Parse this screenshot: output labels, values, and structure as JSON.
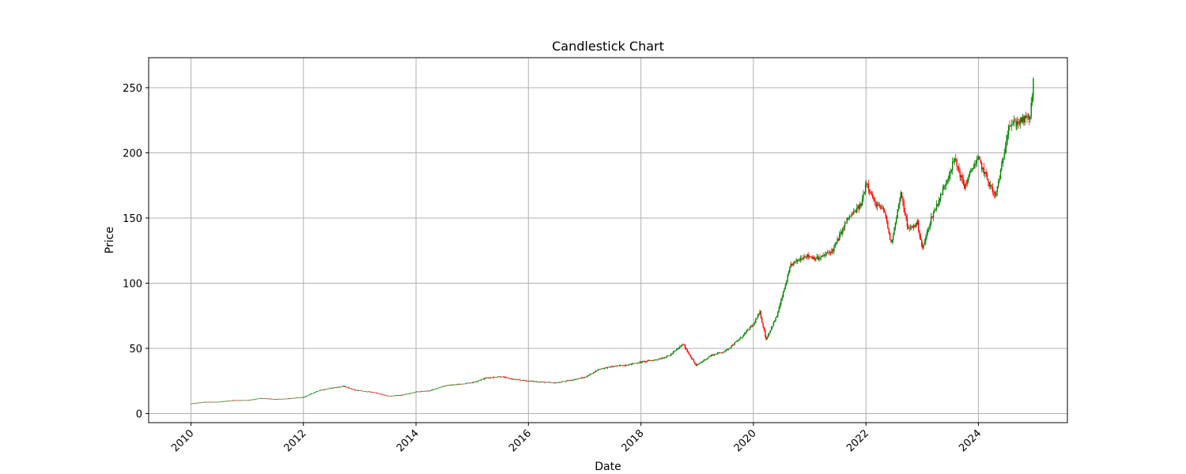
{
  "chart_data": {
    "type": "candlestick",
    "title": "Candlestick Chart",
    "xlabel": "Date",
    "ylabel": "Price",
    "xlim": [
      "2009-04-01",
      "2025-08-01"
    ],
    "ylim": [
      -7,
      273
    ],
    "grid": true,
    "x_ticks": [
      "2010",
      "2012",
      "2014",
      "2016",
      "2018",
      "2020",
      "2022",
      "2024"
    ],
    "y_ticks": [
      0,
      50,
      100,
      150,
      200,
      250
    ],
    "colors": {
      "up": "#008000",
      "down": "#ff0000",
      "grid": "#b0b0b0",
      "axes": "#000000"
    },
    "series": [
      {
        "dates": [
          "2010-01-04",
          "2010-04-01",
          "2010-07-01",
          "2010-10-01",
          "2011-01-03",
          "2011-04-01",
          "2011-07-01",
          "2011-10-03",
          "2012-01-03",
          "2012-04-02",
          "2012-07-02",
          "2012-09-20",
          "2012-12-03",
          "2013-04-01",
          "2013-07-01",
          "2013-10-01",
          "2014-01-02",
          "2014-04-01",
          "2014-07-01",
          "2014-10-01",
          "2015-01-02",
          "2015-04-01",
          "2015-07-01",
          "2015-10-01",
          "2016-01-04",
          "2016-04-01",
          "2016-07-01",
          "2016-10-03",
          "2017-01-03",
          "2017-04-03",
          "2017-07-03",
          "2017-10-02",
          "2018-01-02",
          "2018-04-02",
          "2018-07-02",
          "2018-10-01",
          "2018-12-24",
          "2019-04-01",
          "2019-07-01",
          "2019-10-01",
          "2020-01-02",
          "2020-02-12",
          "2020-03-23",
          "2020-06-01",
          "2020-09-01",
          "2020-12-01",
          "2021-03-01",
          "2021-06-01",
          "2021-09-01",
          "2021-12-01",
          "2022-01-03",
          "2022-03-01",
          "2022-05-02",
          "2022-06-13",
          "2022-08-15",
          "2022-10-03",
          "2022-12-01",
          "2023-01-03",
          "2023-03-01",
          "2023-05-01",
          "2023-07-31",
          "2023-10-02",
          "2023-12-01",
          "2024-01-02",
          "2024-04-19",
          "2024-06-03",
          "2024-07-15",
          "2024-09-03",
          "2024-12-02",
          "2024-12-24"
        ],
        "close": [
          7.6,
          8.8,
          8.9,
          10.1,
          10.2,
          11.7,
          10.9,
          11.5,
          12.5,
          17.4,
          19.6,
          20.9,
          17.9,
          16.2,
          13.4,
          14.1,
          16.6,
          17.5,
          21.2,
          22.4,
          23.8,
          27.3,
          28.4,
          26.1,
          24.9,
          24.1,
          23.5,
          25.6,
          27.8,
          34.1,
          36.1,
          37.3,
          39.5,
          41.1,
          44.2,
          53.2,
          36.7,
          44.6,
          47.9,
          56.8,
          68.7,
          77.5,
          57.1,
          74.8,
          114.1,
          121.2,
          118.8,
          125.6,
          148.7,
          160.3,
          178.1,
          161.2,
          154.8,
          130.2,
          168.3,
          140.9,
          146.1,
          126.2,
          150.2,
          166.8,
          195.4,
          173.8,
          190.2,
          194.9,
          166.2,
          191.2,
          221.6,
          222.7,
          227.4,
          255.2
        ]
      }
    ]
  }
}
